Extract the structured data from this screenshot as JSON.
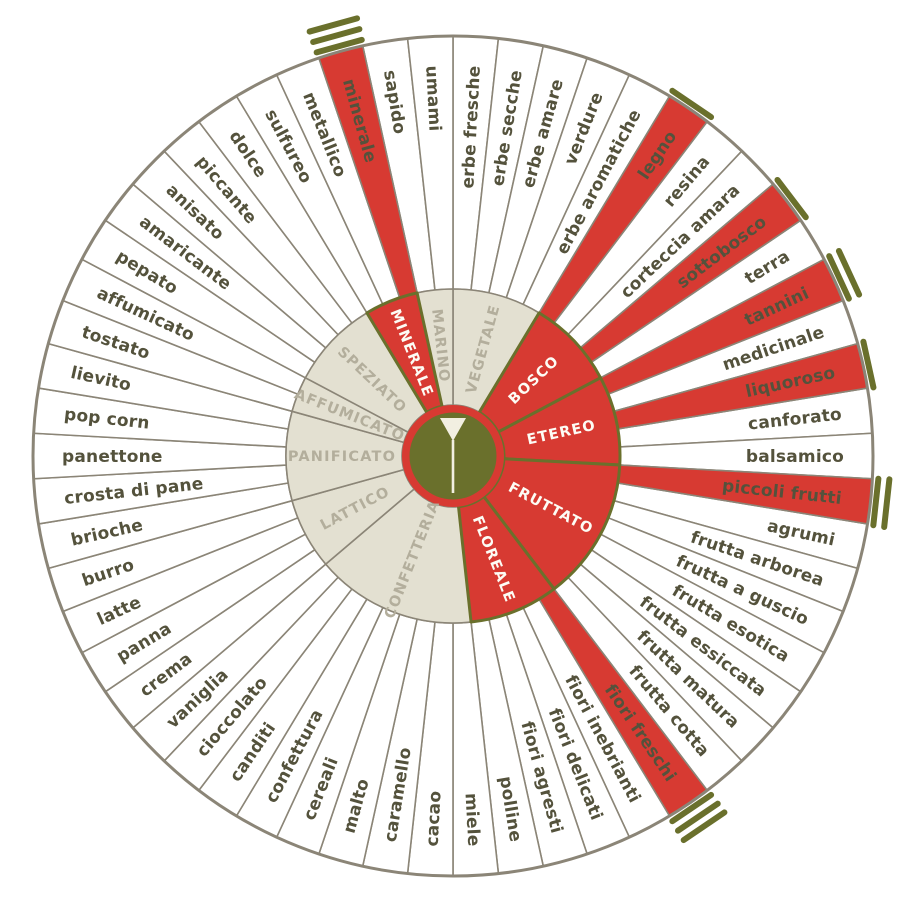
{
  "colors": {
    "highlight_red": "#d73a32",
    "olive_green": "#6a702c",
    "beige": "#e3e0d1",
    "category_text": "#b3ae9c",
    "category_text_highlighted": "#fdfcf5",
    "label_text": "#54523c",
    "line_gray": "#8b8577",
    "cream": "#f2efe1",
    "background": "#ffffff"
  },
  "center": {
    "icon": "wine-glass-icon"
  },
  "chart_data": {
    "type": "pie",
    "variant": "sunburst-aroma-wheel",
    "rings": [
      "categories",
      "descriptors"
    ],
    "legend_position": "none",
    "start_angle_deg": 0,
    "segment_angle_deg": 6.2069,
    "categories": [
      {
        "label": "VEGETALE",
        "highlighted": false,
        "children": [
          {
            "label": "erbe fresche",
            "highlighted": false,
            "intensity": 0
          },
          {
            "label": "erbe secche",
            "highlighted": false,
            "intensity": 0
          },
          {
            "label": "erbe amare",
            "highlighted": false,
            "intensity": 0
          },
          {
            "label": "verdure",
            "highlighted": false,
            "intensity": 0
          },
          {
            "label": "erbe aromatiche",
            "highlighted": false,
            "intensity": 0
          }
        ]
      },
      {
        "label": "BOSCO",
        "highlighted": true,
        "children": [
          {
            "label": "legno",
            "highlighted": true,
            "intensity": 1
          },
          {
            "label": "resina",
            "highlighted": false,
            "intensity": 0
          },
          {
            "label": "corteccia amara",
            "highlighted": false,
            "intensity": 0
          },
          {
            "label": "sottobosco",
            "highlighted": true,
            "intensity": 1
          },
          {
            "label": "terra",
            "highlighted": false,
            "intensity": 0
          }
        ]
      },
      {
        "label": "ETEREO",
        "highlighted": true,
        "children": [
          {
            "label": "tannini",
            "highlighted": true,
            "intensity": 2
          },
          {
            "label": "medicinale",
            "highlighted": false,
            "intensity": 0
          },
          {
            "label": "liquoroso",
            "highlighted": true,
            "intensity": 1
          },
          {
            "label": "canforato",
            "highlighted": false,
            "intensity": 0
          },
          {
            "label": "balsamico",
            "highlighted": false,
            "intensity": 0
          }
        ]
      },
      {
        "label": "FRUTTATO",
        "highlighted": true,
        "children": [
          {
            "label": "piccoli frutti",
            "highlighted": true,
            "intensity": 2
          },
          {
            "label": "agrumi",
            "highlighted": false,
            "intensity": 0
          },
          {
            "label": "frutta arborea",
            "highlighted": false,
            "intensity": 0
          },
          {
            "label": "frutta a guscio",
            "highlighted": false,
            "intensity": 0
          },
          {
            "label": "frutta esotica",
            "highlighted": false,
            "intensity": 0
          },
          {
            "label": "frutta essiccata",
            "highlighted": false,
            "intensity": 0
          },
          {
            "label": "frutta matura",
            "highlighted": false,
            "intensity": 0
          },
          {
            "label": "frutta cotta",
            "highlighted": false,
            "intensity": 0
          }
        ]
      },
      {
        "label": "FLOREALE",
        "highlighted": true,
        "children": [
          {
            "label": "fiori freschi",
            "highlighted": true,
            "intensity": 3
          },
          {
            "label": "fiori inebrianti",
            "highlighted": false,
            "intensity": 0
          },
          {
            "label": "fiori delicati",
            "highlighted": false,
            "intensity": 0
          },
          {
            "label": "fiori agresti",
            "highlighted": false,
            "intensity": 0
          },
          {
            "label": "polline",
            "highlighted": false,
            "intensity": 0
          }
        ]
      },
      {
        "label": "CONFETTERIA",
        "highlighted": false,
        "children": [
          {
            "label": "miele",
            "highlighted": false,
            "intensity": 0
          },
          {
            "label": "cacao",
            "highlighted": false,
            "intensity": 0
          },
          {
            "label": "caramello",
            "highlighted": false,
            "intensity": 0
          },
          {
            "label": "malto",
            "highlighted": false,
            "intensity": 0
          },
          {
            "label": "cereali",
            "highlighted": false,
            "intensity": 0
          },
          {
            "label": "confettura",
            "highlighted": false,
            "intensity": 0
          },
          {
            "label": "canditi",
            "highlighted": false,
            "intensity": 0
          },
          {
            "label": "cioccolato",
            "highlighted": false,
            "intensity": 0
          },
          {
            "label": "vaniglia",
            "highlighted": false,
            "intensity": 0
          }
        ]
      },
      {
        "label": "LATTICO",
        "highlighted": false,
        "children": [
          {
            "label": "crema",
            "highlighted": false,
            "intensity": 0
          },
          {
            "label": "panna",
            "highlighted": false,
            "intensity": 0
          },
          {
            "label": "latte",
            "highlighted": false,
            "intensity": 0
          },
          {
            "label": "burro",
            "highlighted": false,
            "intensity": 0
          }
        ]
      },
      {
        "label": "PANIFICATO",
        "highlighted": false,
        "children": [
          {
            "label": "brioche",
            "highlighted": false,
            "intensity": 0
          },
          {
            "label": "crosta di pane",
            "highlighted": false,
            "intensity": 0
          },
          {
            "label": "panettone",
            "highlighted": false,
            "intensity": 0
          },
          {
            "label": "pop corn",
            "highlighted": false,
            "intensity": 0
          },
          {
            "label": "lievito",
            "highlighted": false,
            "intensity": 0
          }
        ]
      },
      {
        "label": "AFFUMICATO",
        "highlighted": false,
        "children": [
          {
            "label": "tostato",
            "highlighted": false,
            "intensity": 0
          },
          {
            "label": "affumicato",
            "highlighted": false,
            "intensity": 0
          }
        ]
      },
      {
        "label": "SPEZIATO",
        "highlighted": false,
        "children": [
          {
            "label": "pepato",
            "highlighted": false,
            "intensity": 0
          },
          {
            "label": "amaricante",
            "highlighted": false,
            "intensity": 0
          },
          {
            "label": "anisato",
            "highlighted": false,
            "intensity": 0
          },
          {
            "label": "piccante",
            "highlighted": false,
            "intensity": 0
          },
          {
            "label": "dolce",
            "highlighted": false,
            "intensity": 0
          }
        ]
      },
      {
        "label": "MINERALE",
        "highlighted": true,
        "children": [
          {
            "label": "sulfureo",
            "highlighted": false,
            "intensity": 0
          },
          {
            "label": "metallico",
            "highlighted": false,
            "intensity": 0
          },
          {
            "label": "minerale",
            "highlighted": true,
            "intensity": 3
          }
        ]
      },
      {
        "label": "MARINO",
        "highlighted": false,
        "children": [
          {
            "label": "sapido",
            "highlighted": false,
            "intensity": 0
          },
          {
            "label": "umami",
            "highlighted": false,
            "intensity": 0
          }
        ]
      }
    ]
  }
}
